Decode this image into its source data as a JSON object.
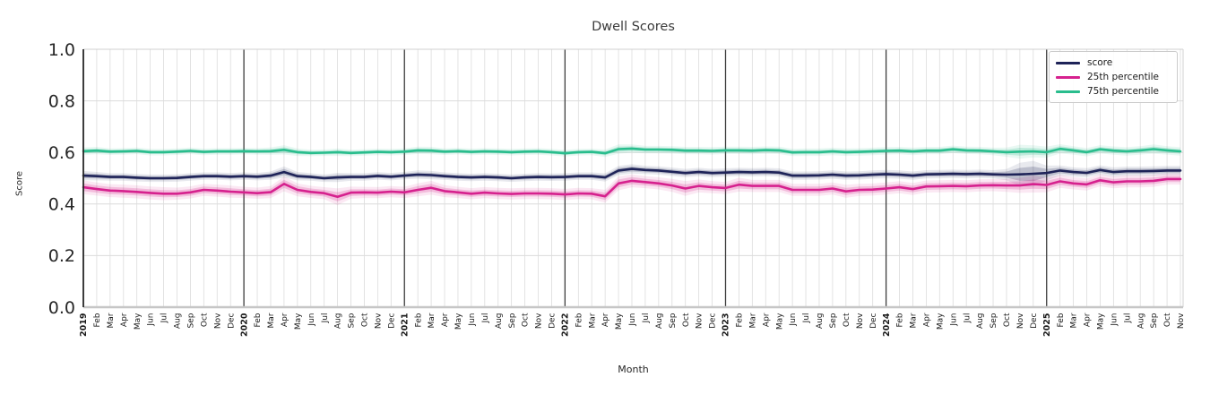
{
  "chart_data": {
    "type": "line",
    "title": "Dwell Scores",
    "xlabel": "Month",
    "ylabel": "Score",
    "ylim": [
      0.0,
      1.0
    ],
    "yticks": [
      "0.0",
      "0.2",
      "0.4",
      "0.6",
      "0.8",
      "1.0"
    ],
    "grid": true,
    "legend_position": "upper right",
    "x_tick_labels": [
      "2019",
      "Feb",
      "Mar",
      "Apr",
      "May",
      "Jun",
      "Jul",
      "Aug",
      "Sep",
      "Oct",
      "Nov",
      "Dec",
      "2020",
      "Feb",
      "Mar",
      "Apr",
      "May",
      "Jun",
      "Jul",
      "Aug",
      "Sep",
      "Oct",
      "Nov",
      "Dec",
      "2021",
      "Feb",
      "Mar",
      "Apr",
      "May",
      "Jun",
      "Jul",
      "Aug",
      "Sep",
      "Oct",
      "Nov",
      "Dec",
      "2022",
      "Feb",
      "Mar",
      "Apr",
      "May",
      "Jun",
      "Jul",
      "Aug",
      "Sep",
      "Oct",
      "Nov",
      "Dec",
      "2023",
      "Feb",
      "Mar",
      "Apr",
      "May",
      "Jun",
      "Jul",
      "Aug",
      "Sep",
      "Oct",
      "Nov",
      "Dec",
      "2024",
      "Feb",
      "Mar",
      "Apr",
      "May",
      "Jun",
      "Jul",
      "Aug",
      "Sep",
      "Oct",
      "Nov",
      "Dec",
      "2025",
      "Feb",
      "Mar",
      "Apr",
      "May",
      "Jun",
      "Jul",
      "Aug",
      "Sep",
      "Oct",
      "Nov"
    ],
    "series": [
      {
        "name": "score",
        "color": "#1e2358",
        "values": [
          0.51,
          0.508,
          0.505,
          0.505,
          0.502,
          0.5,
          0.5,
          0.501,
          0.505,
          0.508,
          0.508,
          0.506,
          0.508,
          0.506,
          0.51,
          0.524,
          0.508,
          0.505,
          0.5,
          0.503,
          0.505,
          0.505,
          0.509,
          0.506,
          0.51,
          0.514,
          0.512,
          0.508,
          0.505,
          0.503,
          0.505,
          0.503,
          0.5,
          0.503,
          0.505,
          0.504,
          0.505,
          0.508,
          0.508,
          0.503,
          0.53,
          0.536,
          0.532,
          0.53,
          0.525,
          0.52,
          0.524,
          0.52,
          0.522,
          0.524,
          0.523,
          0.524,
          0.522,
          0.51,
          0.51,
          0.511,
          0.514,
          0.51,
          0.511,
          0.514,
          0.516,
          0.514,
          0.51,
          0.515,
          0.516,
          0.517,
          0.516,
          0.517,
          0.515,
          0.514,
          0.515,
          0.517,
          0.52,
          0.53,
          0.524,
          0.521,
          0.532,
          0.524,
          0.527,
          0.527,
          0.528,
          0.53,
          0.53
        ],
        "ci": [
          0.01,
          0.009,
          0.008,
          0.008,
          0.008,
          0.008,
          0.008,
          0.008,
          0.008,
          0.008,
          0.008,
          0.008,
          0.008,
          0.008,
          0.009,
          0.012,
          0.009,
          0.008,
          0.008,
          0.01,
          0.008,
          0.008,
          0.008,
          0.008,
          0.008,
          0.009,
          0.009,
          0.008,
          0.008,
          0.008,
          0.008,
          0.008,
          0.008,
          0.008,
          0.008,
          0.008,
          0.008,
          0.008,
          0.008,
          0.009,
          0.01,
          0.01,
          0.009,
          0.009,
          0.009,
          0.009,
          0.009,
          0.009,
          0.009,
          0.009,
          0.009,
          0.009,
          0.009,
          0.009,
          0.009,
          0.009,
          0.009,
          0.009,
          0.009,
          0.009,
          0.009,
          0.009,
          0.009,
          0.009,
          0.009,
          0.009,
          0.009,
          0.009,
          0.009,
          0.012,
          0.025,
          0.028,
          0.016,
          0.011,
          0.01,
          0.01,
          0.01,
          0.01,
          0.01,
          0.01,
          0.01,
          0.01,
          0.01
        ]
      },
      {
        "name": "25th percentile",
        "color": "#d6218e",
        "values": [
          0.465,
          0.458,
          0.452,
          0.45,
          0.447,
          0.443,
          0.44,
          0.44,
          0.445,
          0.455,
          0.452,
          0.448,
          0.445,
          0.442,
          0.446,
          0.478,
          0.455,
          0.447,
          0.442,
          0.428,
          0.444,
          0.445,
          0.444,
          0.448,
          0.445,
          0.455,
          0.463,
          0.45,
          0.445,
          0.44,
          0.444,
          0.441,
          0.439,
          0.441,
          0.441,
          0.44,
          0.437,
          0.441,
          0.44,
          0.43,
          0.48,
          0.49,
          0.485,
          0.48,
          0.472,
          0.46,
          0.47,
          0.465,
          0.462,
          0.475,
          0.47,
          0.47,
          0.47,
          0.455,
          0.455,
          0.455,
          0.46,
          0.449,
          0.455,
          0.456,
          0.46,
          0.465,
          0.458,
          0.468,
          0.469,
          0.47,
          0.469,
          0.472,
          0.473,
          0.472,
          0.472,
          0.477,
          0.474,
          0.488,
          0.48,
          0.476,
          0.492,
          0.484,
          0.488,
          0.488,
          0.49,
          0.497,
          0.497
        ],
        "ci": [
          0.015,
          0.014,
          0.014,
          0.014,
          0.014,
          0.014,
          0.014,
          0.013,
          0.013,
          0.013,
          0.013,
          0.013,
          0.012,
          0.012,
          0.013,
          0.016,
          0.014,
          0.013,
          0.013,
          0.018,
          0.013,
          0.012,
          0.012,
          0.012,
          0.012,
          0.014,
          0.015,
          0.013,
          0.012,
          0.012,
          0.012,
          0.012,
          0.012,
          0.012,
          0.012,
          0.012,
          0.012,
          0.012,
          0.012,
          0.014,
          0.015,
          0.014,
          0.013,
          0.013,
          0.014,
          0.016,
          0.014,
          0.013,
          0.013,
          0.015,
          0.013,
          0.013,
          0.013,
          0.013,
          0.013,
          0.013,
          0.013,
          0.014,
          0.013,
          0.013,
          0.013,
          0.013,
          0.013,
          0.013,
          0.013,
          0.013,
          0.013,
          0.013,
          0.013,
          0.014,
          0.016,
          0.018,
          0.016,
          0.014,
          0.013,
          0.013,
          0.013,
          0.013,
          0.013,
          0.013,
          0.013,
          0.012,
          0.012
        ]
      },
      {
        "name": "75th percentile",
        "color": "#29bd8d",
        "values": [
          0.605,
          0.607,
          0.603,
          0.604,
          0.606,
          0.601,
          0.601,
          0.603,
          0.606,
          0.602,
          0.604,
          0.604,
          0.605,
          0.604,
          0.605,
          0.61,
          0.601,
          0.598,
          0.599,
          0.601,
          0.598,
          0.6,
          0.602,
          0.601,
          0.603,
          0.608,
          0.607,
          0.603,
          0.605,
          0.602,
          0.604,
          0.603,
          0.601,
          0.603,
          0.604,
          0.601,
          0.597,
          0.601,
          0.602,
          0.597,
          0.613,
          0.615,
          0.611,
          0.611,
          0.61,
          0.607,
          0.607,
          0.606,
          0.608,
          0.608,
          0.607,
          0.609,
          0.608,
          0.6,
          0.601,
          0.601,
          0.604,
          0.601,
          0.602,
          0.604,
          0.606,
          0.607,
          0.604,
          0.607,
          0.607,
          0.612,
          0.608,
          0.607,
          0.604,
          0.601,
          0.603,
          0.604,
          0.601,
          0.614,
          0.608,
          0.601,
          0.612,
          0.607,
          0.604,
          0.608,
          0.613,
          0.608,
          0.604
        ],
        "ci": [
          0.008,
          0.008,
          0.007,
          0.007,
          0.007,
          0.007,
          0.007,
          0.007,
          0.007,
          0.007,
          0.007,
          0.007,
          0.007,
          0.007,
          0.008,
          0.01,
          0.008,
          0.007,
          0.007,
          0.008,
          0.007,
          0.007,
          0.007,
          0.007,
          0.007,
          0.008,
          0.008,
          0.007,
          0.007,
          0.007,
          0.007,
          0.007,
          0.007,
          0.007,
          0.007,
          0.007,
          0.007,
          0.007,
          0.007,
          0.008,
          0.01,
          0.009,
          0.008,
          0.008,
          0.008,
          0.008,
          0.008,
          0.008,
          0.008,
          0.008,
          0.008,
          0.008,
          0.008,
          0.008,
          0.008,
          0.008,
          0.008,
          0.008,
          0.008,
          0.008,
          0.008,
          0.008,
          0.008,
          0.008,
          0.008,
          0.008,
          0.008,
          0.008,
          0.008,
          0.01,
          0.015,
          0.013,
          0.012,
          0.01,
          0.009,
          0.009,
          0.009,
          0.009,
          0.009,
          0.009,
          0.01,
          0.009,
          0.009
        ]
      }
    ],
    "colors": {
      "grid": "#dcdcdc",
      "year_line": "#3d3d3d",
      "left_spine": "#262626",
      "bottom_spine": "#c6c6c6",
      "light_spine": "#d0d0d0",
      "tick_text": "#262626"
    }
  }
}
